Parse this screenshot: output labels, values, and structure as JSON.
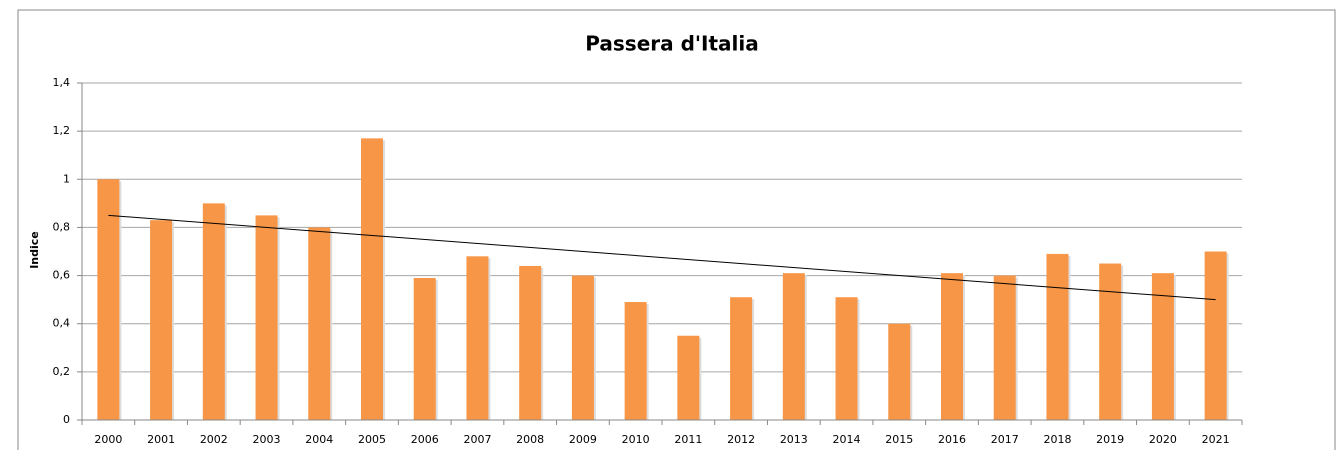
{
  "chart_data": {
    "type": "bar",
    "title": "Passera d'Italia",
    "y_label": "Indice",
    "categories": [
      "2000",
      "2001",
      "2002",
      "2003",
      "2004",
      "2005",
      "2006",
      "2007",
      "2008",
      "2009",
      "2010",
      "2011",
      "2012",
      "2013",
      "2014",
      "2015",
      "2016",
      "2017",
      "2018",
      "2019",
      "2020",
      "2021"
    ],
    "values": [
      1.0,
      0.83,
      0.9,
      0.85,
      0.8,
      1.17,
      0.59,
      0.68,
      0.64,
      0.6,
      0.49,
      0.35,
      0.51,
      0.61,
      0.51,
      0.4,
      0.61,
      0.6,
      0.69,
      0.65,
      0.61,
      0.7
    ],
    "color": "#f79646",
    "trendline": [
      0.85,
      0.5
    ],
    "ylim": [
      0,
      1.4
    ],
    "yticks": [
      0,
      {
        "value": 0.2,
        "label": "0,2"
      },
      {
        "value": 0.4,
        "label": "0,4"
      },
      {
        "value": 0.6,
        "label": "0,6"
      },
      {
        "value": 0.8,
        "label": "0,8"
      },
      1,
      {
        "value": 1.2,
        "label": "1,2"
      },
      {
        "value": 1.4,
        "label": "1,4"
      }
    ],
    "grid": true
  }
}
